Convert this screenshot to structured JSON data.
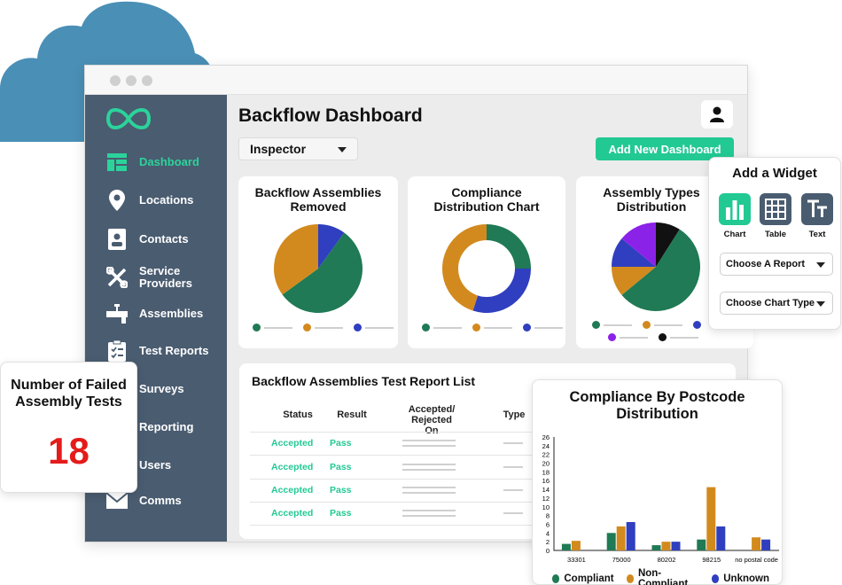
{
  "colors": {
    "green": "#1f7a55",
    "orange": "#d28a1e",
    "blue": "#2f3fbf",
    "purple": "#8b22e8",
    "black": "#111111",
    "accent": "#22c993",
    "sidebar": "#4a5c70",
    "red": "#e41b1b"
  },
  "sidebar": {
    "logo_icon": "infinity-logo-icon",
    "items": [
      {
        "label": "Dashboard",
        "icon": "dashboard-icon",
        "active": true
      },
      {
        "label": "Locations",
        "icon": "location-pin-icon"
      },
      {
        "label": "Contacts",
        "icon": "contact-card-icon"
      },
      {
        "label": "Service Providers",
        "icon": "tools-icon"
      },
      {
        "label": "Assemblies",
        "icon": "pipe-valve-icon"
      },
      {
        "label": "Test Reports",
        "icon": "clipboard-icon"
      },
      {
        "label": "Surveys",
        "icon": "survey-icon"
      },
      {
        "label": "Reporting",
        "icon": "reporting-icon"
      },
      {
        "label": "Users",
        "icon": "users-icon"
      },
      {
        "label": "Comms",
        "icon": "envelope-icon"
      }
    ]
  },
  "header": {
    "title": "Backflow Dashboard",
    "user_icon": "user-icon"
  },
  "filter": {
    "selected": "Inspector"
  },
  "actions": {
    "add_dashboard": "Add New Dashboard"
  },
  "cards": [
    {
      "title": "Backflow Assemblies Removed"
    },
    {
      "title": "Compliance Distribution Chart"
    },
    {
      "title": "Assembly Types Distribution"
    }
  ],
  "chart_data": [
    {
      "type": "pie",
      "title": "Backflow Assemblies Removed",
      "values": [
        {
          "color": "#2f3fbf",
          "value": 10
        },
        {
          "color": "#1f7a55",
          "value": 55
        },
        {
          "color": "#d28a1e",
          "value": 35
        }
      ]
    },
    {
      "type": "pie",
      "title": "Compliance Distribution Chart",
      "style": "donut",
      "values": [
        {
          "color": "#1f7a55",
          "value": 25
        },
        {
          "color": "#2f3fbf",
          "value": 30
        },
        {
          "color": "#d28a1e",
          "value": 45
        }
      ]
    },
    {
      "type": "pie",
      "title": "Assembly Types Distribution",
      "values": [
        {
          "color": "#111111",
          "value": 9
        },
        {
          "color": "#1f7a55",
          "value": 55
        },
        {
          "color": "#d28a1e",
          "value": 11
        },
        {
          "color": "#2f3fbf",
          "value": 11
        },
        {
          "color": "#8b22e8",
          "value": 14
        }
      ]
    },
    {
      "type": "bar",
      "title": "Compliance By Postcode Distribution",
      "categories": [
        "33301",
        "75000",
        "80202",
        "98215",
        "no postal code"
      ],
      "series": [
        {
          "name": "Compliant",
          "color": "#1f7a55",
          "values": [
            1.5,
            4,
            1.2,
            2.5,
            0
          ]
        },
        {
          "name": "Non-Compliant",
          "color": "#d28a1e",
          "values": [
            2.2,
            5.5,
            2,
            14.5,
            3
          ]
        },
        {
          "name": "Unknown",
          "color": "#2f3fbf",
          "values": [
            0,
            6.5,
            2,
            5.5,
            2.5
          ]
        }
      ],
      "yticks": [
        "26",
        "24",
        "22",
        "20",
        "18",
        "16",
        "14",
        "12",
        "10",
        "8",
        "6",
        "4",
        "2",
        "0"
      ],
      "ylim": [
        0,
        26
      ]
    }
  ],
  "report_list": {
    "title": "Backflow Assemblies Test Report List",
    "columns": [
      "Status",
      "Result",
      "Accepted/ Rejected On",
      "Type"
    ],
    "rows": [
      {
        "status": "Accepted",
        "result": "Pass"
      },
      {
        "status": "Accepted",
        "result": "Pass"
      },
      {
        "status": "Accepted",
        "result": "Pass"
      },
      {
        "status": "Accepted",
        "result": "Pass"
      }
    ]
  },
  "failed_tests": {
    "title": "Number of Failed Assembly Tests",
    "value": "18"
  },
  "widget": {
    "title": "Add a Widget",
    "options": [
      {
        "label": "Chart",
        "icon": "chart-icon"
      },
      {
        "label": "Table",
        "icon": "table-icon"
      },
      {
        "label": "Text",
        "icon": "text-icon"
      }
    ],
    "report_select": "Choose A Report",
    "chart_type_select": "Choose Chart Type"
  }
}
